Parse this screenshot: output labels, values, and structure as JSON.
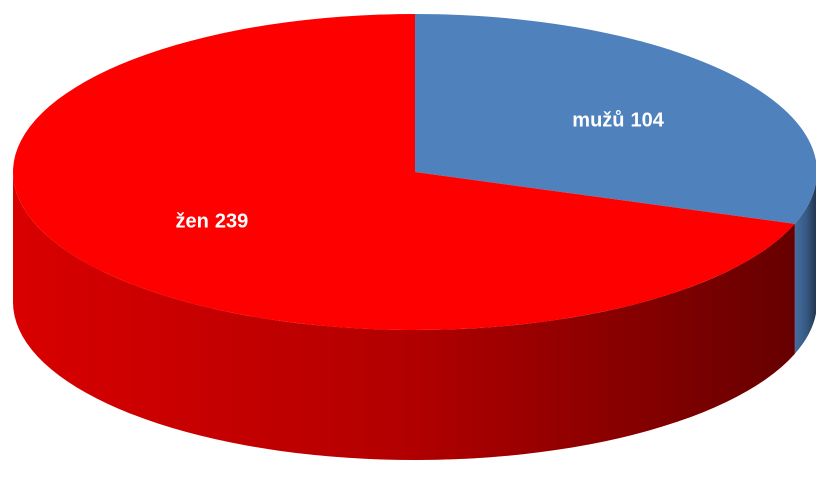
{
  "chart_data": {
    "type": "pie",
    "categories": [
      "mužů",
      "žen"
    ],
    "values": [
      104,
      239
    ],
    "colors": [
      "#4f81bd",
      "#ff0000"
    ]
  }
}
